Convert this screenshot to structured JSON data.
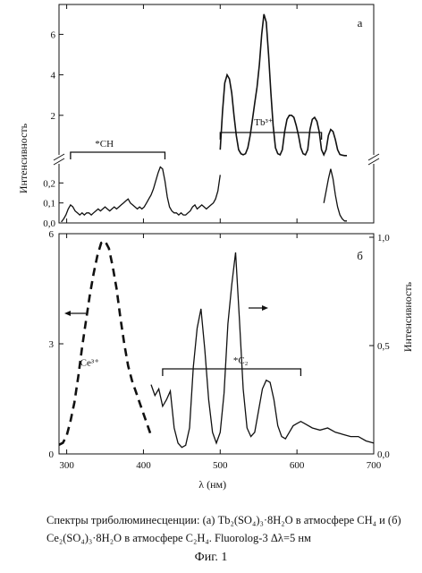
{
  "caption": {
    "text": "Спектры триболюминесценции: (а) Tb₂(SO₄)₃·8H₂O в атмосфере CH₄ и (б) Ce₂(SO₄)₃·8H₂O в атмосфере C₂H₄. Fluorolog-3 Δλ=5 нм",
    "figure_label": "Фиг. 1"
  },
  "chart_data": [
    {
      "type": "line",
      "panel_label": "а",
      "title": "",
      "xlabel": "",
      "ylabel": "Интенсивность",
      "xlim": [
        290,
        700
      ],
      "y_axis_break": true,
      "lower_ylim": [
        0,
        0.3
      ],
      "lower_yticks": [
        "0,0",
        "0,1",
        "0,2"
      ],
      "upper_ylim": [
        0,
        7.3
      ],
      "upper_yticks": [
        "2",
        "4",
        "6"
      ],
      "annotations": [
        {
          "text": "*CH",
          "bracket_x": [
            305,
            428
          ]
        },
        {
          "text": "Tb³⁺",
          "bracket_x": [
            500,
            632
          ]
        }
      ],
      "series": [
        {
          "name": "",
          "segment_lower": {
            "x": [
              293,
              296,
              299,
              302,
              305,
              308,
              311,
              314,
              317,
              320,
              323,
              326,
              329,
              332,
              335,
              338,
              341,
              344,
              347,
              350,
              353,
              356,
              359,
              362,
              365,
              368,
              371,
              374,
              377,
              380,
              383,
              386,
              389,
              392,
              395,
              398,
              401,
              404,
              407,
              410,
              413,
              416,
              419,
              422,
              425,
              428,
              431,
              434,
              437,
              440,
              443,
              446,
              449,
              452,
              455,
              458,
              461,
              464,
              467,
              470,
              473,
              476,
              479,
              482,
              485,
              488,
              491,
              494,
              497,
              500
            ],
            "y": [
              0.005,
              0.02,
              0.04,
              0.07,
              0.09,
              0.08,
              0.06,
              0.05,
              0.04,
              0.05,
              0.04,
              0.05,
              0.05,
              0.04,
              0.05,
              0.06,
              0.07,
              0.06,
              0.07,
              0.08,
              0.07,
              0.06,
              0.07,
              0.08,
              0.07,
              0.08,
              0.09,
              0.1,
              0.11,
              0.12,
              0.1,
              0.09,
              0.08,
              0.07,
              0.08,
              0.07,
              0.08,
              0.1,
              0.12,
              0.14,
              0.17,
              0.21,
              0.25,
              0.28,
              0.27,
              0.21,
              0.13,
              0.08,
              0.06,
              0.05,
              0.05,
              0.04,
              0.05,
              0.04,
              0.04,
              0.05,
              0.06,
              0.08,
              0.09,
              0.07,
              0.08,
              0.09,
              0.08,
              0.07,
              0.08,
              0.09,
              0.1,
              0.12,
              0.16,
              0.24
            ]
          },
          "segment_upper": {
            "x": [
              500,
              503,
              506,
              509,
              512,
              515,
              518,
              521,
              524,
              527,
              530,
              533,
              536,
              539,
              542,
              545,
              548,
              551,
              554,
              557,
              560,
              563,
              566,
              569,
              572,
              575,
              578,
              581,
              584,
              587,
              590,
              593,
              596,
              599,
              602,
              605,
              608,
              611,
              614,
              617,
              620,
              623,
              626,
              629,
              632,
              635,
              638,
              641,
              644,
              647,
              650,
              653,
              656,
              659,
              662,
              665
            ],
            "y": [
              0.3,
              2.2,
              3.6,
              4.0,
              3.8,
              3.1,
              2.0,
              1.0,
              0.3,
              0.1,
              0.05,
              0.1,
              0.4,
              1.0,
              1.8,
              2.6,
              3.4,
              4.5,
              6.0,
              7.0,
              6.6,
              5.0,
              3.1,
              1.5,
              0.4,
              0.1,
              0.05,
              0.3,
              1.2,
              1.8,
              2.0,
              2.0,
              1.9,
              1.5,
              1.0,
              0.4,
              0.1,
              0.05,
              0.3,
              1.3,
              1.8,
              1.9,
              1.7,
              1.2,
              0.3,
              0.05,
              0.3,
              1.0,
              1.3,
              1.2,
              0.8,
              0.3,
              0.06,
              0.03,
              0.01,
              0.01
            ]
          },
          "segment_tail": {
            "x": [
              635,
              638,
              641,
              644,
              647,
              650,
              653,
              656,
              659,
              662,
              665
            ],
            "y": [
              0.1,
              0.16,
              0.22,
              0.27,
              0.22,
              0.14,
              0.08,
              0.04,
              0.02,
              0.01,
              0.01
            ]
          }
        }
      ]
    },
    {
      "type": "line",
      "panel_label": "б",
      "title": "",
      "xlabel": "λ (нм)",
      "ylabel_left": "",
      "ylabel_right": "Интенсивность",
      "xlim": [
        290,
        700
      ],
      "xticks": [
        300,
        400,
        500,
        600,
        700
      ],
      "ylim_left": [
        0,
        6
      ],
      "yticks_left": [
        0,
        3,
        6
      ],
      "ylim_right": [
        0,
        1.0
      ],
      "yticks_right": [
        "0,0",
        "0,5",
        "1,0"
      ],
      "arrow_left_label": "←",
      "arrow_right_label": "→",
      "annotations": [
        {
          "text": "Ce³⁺",
          "at": [
            330,
            2.4
          ]
        },
        {
          "text": "*C₂",
          "bracket_x": [
            425,
            605
          ]
        }
      ],
      "series": [
        {
          "name": "",
          "axis": "left",
          "style": "dashed",
          "x": [
            290,
            295,
            300,
            305,
            310,
            315,
            320,
            325,
            330,
            335,
            340,
            345,
            350,
            355,
            360,
            365,
            370,
            375,
            380,
            385,
            390,
            395,
            400,
            405,
            410
          ],
          "y": [
            0.25,
            0.3,
            0.5,
            0.9,
            1.4,
            2.1,
            2.9,
            3.6,
            4.3,
            4.9,
            5.4,
            5.75,
            5.8,
            5.6,
            5.1,
            4.5,
            3.7,
            3.0,
            2.4,
            2.0,
            1.7,
            1.4,
            1.1,
            0.8,
            0.5
          ]
        },
        {
          "name": "",
          "axis": "right",
          "style": "solid",
          "x": [
            410,
            415,
            420,
            425,
            430,
            435,
            440,
            445,
            450,
            455,
            460,
            465,
            470,
            475,
            480,
            485,
            490,
            495,
            500,
            505,
            510,
            515,
            520,
            525,
            530,
            535,
            540,
            545,
            550,
            555,
            560,
            565,
            570,
            575,
            580,
            585,
            590,
            595,
            600,
            605,
            610,
            620,
            630,
            640,
            650,
            660,
            670,
            680,
            690,
            700
          ],
          "y": [
            0.32,
            0.27,
            0.3,
            0.22,
            0.25,
            0.29,
            0.12,
            0.05,
            0.03,
            0.04,
            0.12,
            0.4,
            0.58,
            0.67,
            0.48,
            0.25,
            0.1,
            0.05,
            0.1,
            0.28,
            0.6,
            0.78,
            0.93,
            0.62,
            0.3,
            0.12,
            0.08,
            0.1,
            0.2,
            0.3,
            0.34,
            0.33,
            0.25,
            0.13,
            0.08,
            0.07,
            0.1,
            0.13,
            0.14,
            0.15,
            0.14,
            0.12,
            0.11,
            0.12,
            0.1,
            0.09,
            0.08,
            0.08,
            0.06,
            0.05
          ]
        }
      ]
    }
  ]
}
